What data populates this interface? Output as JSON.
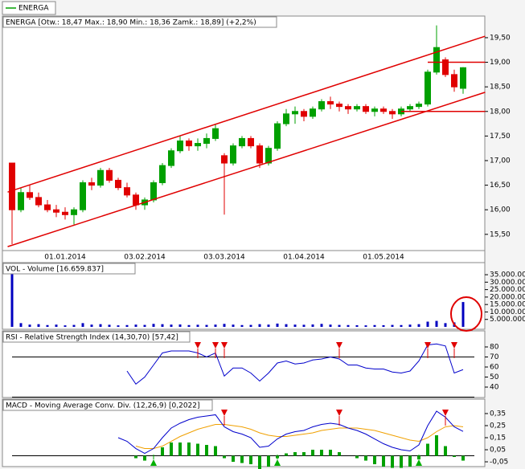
{
  "chart_data": [
    {
      "type": "candlestick",
      "legend": "ENERGA",
      "title": "ENERGA [Otw.: 18,47  Max.: 18,90  Min.: 18,36  Zamk.: 18,89] (+2,2%)",
      "categories": [
        null,
        null,
        null,
        null,
        null,
        null,
        "01.01.2014",
        null,
        null,
        null,
        null,
        null,
        null,
        null,
        null,
        "03.02.2014",
        null,
        null,
        null,
        null,
        null,
        null,
        null,
        null,
        "03.03.2014",
        null,
        null,
        null,
        null,
        null,
        null,
        null,
        null,
        "01.04.2014",
        null,
        null,
        null,
        null,
        null,
        null,
        null,
        null,
        "01.05.2014",
        null,
        null,
        null,
        null,
        null,
        null,
        null,
        null,
        null
      ],
      "ohlc": [
        [
          16.95,
          16.95,
          15.3,
          16.0
        ],
        [
          16.0,
          16.45,
          15.95,
          16.35
        ],
        [
          16.35,
          16.5,
          16.2,
          16.25
        ],
        [
          16.25,
          16.35,
          16.05,
          16.1
        ],
        [
          16.1,
          16.2,
          15.95,
          16.0
        ],
        [
          16.0,
          16.1,
          15.85,
          15.95
        ],
        [
          15.95,
          16.05,
          15.8,
          15.9
        ],
        [
          15.9,
          16.05,
          15.7,
          16.0
        ],
        [
          16.0,
          16.6,
          15.95,
          16.55
        ],
        [
          16.55,
          16.65,
          16.4,
          16.5
        ],
        [
          16.5,
          16.85,
          16.45,
          16.8
        ],
        [
          16.8,
          16.85,
          16.55,
          16.6
        ],
        [
          16.6,
          16.65,
          16.4,
          16.45
        ],
        [
          16.45,
          16.55,
          16.25,
          16.3
        ],
        [
          16.3,
          16.35,
          16.0,
          16.1
        ],
        [
          16.1,
          16.25,
          16.0,
          16.2
        ],
        [
          16.2,
          16.6,
          16.15,
          16.55
        ],
        [
          16.55,
          16.95,
          16.5,
          16.9
        ],
        [
          16.9,
          17.25,
          16.85,
          17.2
        ],
        [
          17.2,
          17.5,
          17.15,
          17.4
        ],
        [
          17.4,
          17.45,
          17.2,
          17.3
        ],
        [
          17.3,
          17.45,
          17.2,
          17.35
        ],
        [
          17.35,
          17.55,
          17.25,
          17.45
        ],
        [
          17.45,
          17.75,
          17.4,
          17.65
        ],
        [
          17.1,
          17.15,
          15.9,
          16.95
        ],
        [
          16.95,
          17.35,
          16.9,
          17.3
        ],
        [
          17.3,
          17.5,
          17.25,
          17.45
        ],
        [
          17.45,
          17.5,
          17.25,
          17.3
        ],
        [
          17.3,
          17.35,
          16.85,
          16.95
        ],
        [
          16.95,
          17.3,
          16.9,
          17.25
        ],
        [
          17.25,
          17.8,
          17.2,
          17.75
        ],
        [
          17.75,
          18.05,
          17.7,
          17.95
        ],
        [
          17.95,
          18.1,
          17.75,
          18.0
        ],
        [
          18.0,
          18.05,
          17.8,
          17.9
        ],
        [
          17.9,
          18.1,
          17.85,
          18.05
        ],
        [
          18.05,
          18.25,
          18.0,
          18.2
        ],
        [
          18.2,
          18.3,
          18.05,
          18.15
        ],
        [
          18.15,
          18.2,
          18.0,
          18.1
        ],
        [
          18.1,
          18.15,
          17.95,
          18.05
        ],
        [
          18.05,
          18.15,
          18.0,
          18.1
        ],
        [
          18.1,
          18.15,
          17.95,
          18.0
        ],
        [
          18.0,
          18.1,
          17.9,
          18.05
        ],
        [
          18.05,
          18.1,
          17.95,
          18.0
        ],
        [
          18.0,
          18.05,
          17.85,
          17.95
        ],
        [
          17.95,
          18.1,
          17.9,
          18.05
        ],
        [
          18.05,
          18.15,
          18.0,
          18.1
        ],
        [
          18.1,
          18.2,
          18.05,
          18.15
        ],
        [
          18.15,
          18.85,
          18.1,
          18.8
        ],
        [
          18.8,
          19.75,
          18.75,
          19.3
        ],
        [
          19.05,
          19.1,
          18.7,
          18.75
        ],
        [
          18.75,
          18.85,
          18.4,
          18.5
        ],
        [
          18.47,
          18.9,
          18.36,
          18.89
        ]
      ],
      "up_color": "#00a000",
      "down_color": "#e00000",
      "legend_color": "#00a000",
      "ylim": [
        15.17,
        19.94
      ],
      "yticks": [
        {
          "value": 15.5,
          "label": "15,50"
        },
        {
          "value": 16,
          "label": "16,00"
        },
        {
          "value": 16.5,
          "label": "16,50"
        },
        {
          "value": 17,
          "label": "17,00"
        },
        {
          "value": 17.5,
          "label": "17,50"
        },
        {
          "value": 18,
          "label": "18,00"
        },
        {
          "value": 18.5,
          "label": "18,50"
        },
        {
          "value": 19,
          "label": "19,00"
        },
        {
          "value": 19.5,
          "label": "19,50"
        }
      ],
      "trendlines": [
        {
          "x": [
            -0.5,
            53.5
          ],
          "y": [
            16.36,
            19.53
          ]
        },
        {
          "x": [
            -0.5,
            53.5
          ],
          "y": [
            15.25,
            18.39
          ]
        },
        {
          "x": [
            47,
            53.5
          ],
          "y": [
            19,
            19
          ]
        },
        {
          "x": [
            44,
            53.5
          ],
          "y": [
            18,
            18
          ]
        }
      ],
      "trendline_color": "#e00000"
    },
    {
      "type": "bar",
      "title": "VOL - Volume [16.659.837]",
      "color": "#0000c0",
      "values": [
        36000000,
        2500000,
        1500000,
        1800000,
        1200000,
        1500000,
        1000000,
        1300000,
        2500000,
        1500000,
        1800000,
        1400000,
        1000000,
        1200000,
        1500000,
        1300000,
        2000000,
        1800000,
        1500000,
        1600000,
        1200000,
        1400000,
        1300000,
        1500000,
        2000000,
        1500000,
        1200000,
        1300000,
        1800000,
        1500000,
        2200000,
        1800000,
        1500000,
        1400000,
        1600000,
        2000000,
        1500000,
        1300000,
        1200000,
        1100000,
        1000000,
        1200000,
        1100000,
        1300000,
        1200000,
        1500000,
        1800000,
        3500000,
        4000000,
        2500000,
        3000000,
        16659837
      ],
      "ylim": [
        0,
        41500000
      ],
      "yticks": [
        {
          "value": 5000000,
          "label": "5.000.000"
        },
        {
          "value": 10000000,
          "label": "10.000.000"
        },
        {
          "value": 15000000,
          "label": "15.000.000"
        },
        {
          "value": 20000000,
          "label": "20.000.000"
        },
        {
          "value": 25000000,
          "label": "25.000.000"
        },
        {
          "value": 30000000,
          "label": "30.000.000"
        },
        {
          "value": 35000000,
          "label": "35.000.000"
        }
      ]
    },
    {
      "type": "line",
      "title": "RSI - Relative Strength Index (14,30,70) [57,42]",
      "color": "#0000cc",
      "values": [
        null,
        null,
        null,
        null,
        null,
        null,
        null,
        null,
        null,
        null,
        null,
        null,
        null,
        56,
        43,
        50,
        62,
        74,
        76,
        76,
        76,
        74,
        70,
        74,
        51,
        59,
        59,
        54,
        46,
        54,
        64,
        66,
        63,
        64,
        67,
        68,
        70,
        68,
        62,
        62,
        59,
        58,
        58,
        55,
        54,
        56,
        66,
        82,
        83,
        81,
        54,
        57.42
      ],
      "ylim": [
        30.4,
        94.4
      ],
      "yticks": [
        40,
        50,
        60,
        70,
        80
      ],
      "levels": [
        30,
        70
      ],
      "sell_signals": [
        21,
        23,
        24,
        37,
        47,
        50
      ],
      "signal_color": "#e00000"
    },
    {
      "type": "macd",
      "title": "MACD - Moving Average Conv. Div. (12,26,9) [0,2022]",
      "macd": [
        null,
        null,
        null,
        null,
        null,
        null,
        null,
        null,
        null,
        null,
        null,
        null,
        0.15,
        0.12,
        0.06,
        0.02,
        0.06,
        0.15,
        0.23,
        0.27,
        0.3,
        0.32,
        0.33,
        0.34,
        0.24,
        0.2,
        0.18,
        0.15,
        0.07,
        0.08,
        0.14,
        0.18,
        0.2,
        0.21,
        0.24,
        0.26,
        0.27,
        0.26,
        0.23,
        0.21,
        0.18,
        0.14,
        0.1,
        0.07,
        0.05,
        0.04,
        0.09,
        0.25,
        0.37,
        0.32,
        0.24,
        0.2022
      ],
      "signal": [
        null,
        null,
        null,
        null,
        null,
        null,
        null,
        null,
        null,
        null,
        null,
        null,
        null,
        null,
        0.08,
        0.06,
        0.06,
        0.08,
        0.12,
        0.16,
        0.19,
        0.22,
        0.24,
        0.26,
        0.26,
        0.25,
        0.24,
        0.22,
        0.19,
        0.17,
        0.16,
        0.16,
        0.17,
        0.18,
        0.19,
        0.21,
        0.22,
        0.23,
        0.23,
        0.23,
        0.22,
        0.21,
        0.19,
        0.17,
        0.15,
        0.13,
        0.12,
        0.15,
        0.2,
        0.24,
        0.25,
        0.24
      ],
      "histogram": [
        null,
        null,
        null,
        null,
        null,
        null,
        null,
        null,
        null,
        null,
        null,
        null,
        null,
        null,
        -0.02,
        -0.04,
        0,
        0.07,
        0.11,
        0.11,
        0.11,
        0.1,
        0.09,
        0.08,
        -0.02,
        -0.05,
        -0.06,
        -0.07,
        -0.12,
        -0.09,
        -0.02,
        0.02,
        0.03,
        0.03,
        0.05,
        0.05,
        0.05,
        0.03,
        0,
        -0.02,
        -0.04,
        -0.07,
        -0.09,
        -0.1,
        -0.1,
        -0.09,
        -0.03,
        0.1,
        0.17,
        0.08,
        -0.01,
        -0.04
      ],
      "macd_color": "#0000cc",
      "signal_color": "#f0a000",
      "histogram_color": "#00a000",
      "ylim": [
        -0.083,
        0.463
      ],
      "yticks": [
        {
          "value": -0.05,
          "label": "-0,05"
        },
        {
          "value": 0.05,
          "label": "0,05"
        },
        {
          "value": 0.15,
          "label": "0,15"
        },
        {
          "value": 0.25,
          "label": "0,25"
        },
        {
          "value": 0.35,
          "label": "0,35"
        }
      ],
      "levels": [
        0
      ],
      "buy_signals": [
        16,
        30,
        46
      ],
      "sell_signals": [
        24,
        37,
        49
      ],
      "buy_color": "#00b000",
      "sell_color": "#e00000"
    }
  ]
}
